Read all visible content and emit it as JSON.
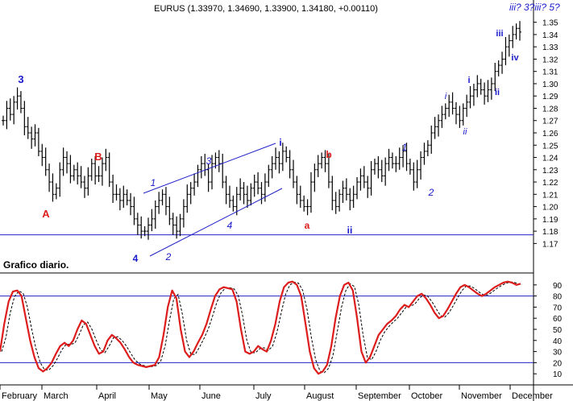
{
  "chart_data": [
    {
      "type": "ohlc",
      "title": "EURUS (1.33970, 1.34690, 1.33900, 1.34180, +0.00110)",
      "ylim": [
        1.165,
        1.355
      ],
      "yticks": [
        "1.35",
        "1.34",
        "1.33",
        "1.32",
        "1.31",
        "1.30",
        "1.29",
        "1.28",
        "1.27",
        "1.26",
        "1.25",
        "1.24",
        "1.23",
        "1.22",
        "1.21",
        "1.20",
        "1.19",
        "1.18",
        "1.17"
      ],
      "reference_line": 1.177,
      "series_close": [
        1.27,
        1.28,
        1.275,
        1.285,
        1.29,
        1.28,
        1.265,
        1.26,
        1.255,
        1.26,
        1.245,
        1.24,
        1.23,
        1.22,
        1.21,
        1.215,
        1.23,
        1.24,
        1.235,
        1.225,
        1.23,
        1.225,
        1.22,
        1.215,
        1.225,
        1.235,
        1.225,
        1.225,
        1.235,
        1.24,
        1.22,
        1.21,
        1.21,
        1.205,
        1.21,
        1.205,
        1.2,
        1.19,
        1.185,
        1.18,
        1.18,
        1.185,
        1.19,
        1.2,
        1.205,
        1.21,
        1.2,
        1.19,
        1.185,
        1.18,
        1.19,
        1.2,
        1.21,
        1.215,
        1.22,
        1.23,
        1.235,
        1.23,
        1.22,
        1.235,
        1.24,
        1.235,
        1.22,
        1.21,
        1.205,
        1.2,
        1.21,
        1.215,
        1.21,
        1.205,
        1.215,
        1.22,
        1.215,
        1.21,
        1.22,
        1.23,
        1.235,
        1.24,
        1.235,
        1.245,
        1.24,
        1.23,
        1.22,
        1.21,
        1.205,
        1.2,
        1.2,
        1.22,
        1.23,
        1.235,
        1.24,
        1.235,
        1.22,
        1.205,
        1.2,
        1.21,
        1.215,
        1.21,
        1.205,
        1.21,
        1.22,
        1.225,
        1.22,
        1.215,
        1.23,
        1.235,
        1.23,
        1.225,
        1.235,
        1.24,
        1.235,
        1.235,
        1.24,
        1.245,
        1.235,
        1.23,
        1.22,
        1.23,
        1.24,
        1.245,
        1.25,
        1.26,
        1.265,
        1.27,
        1.275,
        1.28,
        1.285,
        1.28,
        1.275,
        1.27,
        1.28,
        1.285,
        1.29,
        1.295,
        1.3,
        1.295,
        1.29,
        1.295,
        1.3,
        1.31,
        1.315,
        1.32,
        1.33,
        1.335,
        1.34,
        1.345,
        1.342
      ],
      "wave_labels": [
        {
          "text": "3",
          "color": "#1a1acc",
          "italic": false
        },
        {
          "text": "A",
          "color": "#dd1c1c",
          "italic": false
        },
        {
          "text": "B",
          "color": "#dd1c1c",
          "italic": false
        },
        {
          "text": "4",
          "color": "#1a1acc",
          "italic": false
        },
        {
          "text": "1",
          "color": "#1a1acc",
          "italic": true
        },
        {
          "text": "2",
          "color": "#1a1acc",
          "italic": true
        },
        {
          "text": "3",
          "color": "#1a1acc",
          "italic": true
        },
        {
          "text": "4",
          "color": "#1a1acc",
          "italic": true
        },
        {
          "text": "i",
          "color": "#1a1acc",
          "italic": false
        },
        {
          "text": "a",
          "color": "#dd1c1c",
          "italic": false
        },
        {
          "text": "b",
          "color": "#dd1c1c",
          "italic": false
        },
        {
          "text": "ii",
          "color": "#1a1acc",
          "italic": false
        },
        {
          "text": "1",
          "color": "#1a1acc",
          "italic": true
        },
        {
          "text": "2",
          "color": "#1a1acc",
          "italic": true
        },
        {
          "text": "i",
          "color": "#1a1acc",
          "italic": true
        },
        {
          "text": "ii",
          "color": "#1a1acc",
          "italic": true
        },
        {
          "text": "i",
          "color": "#1a1acc",
          "italic": false
        },
        {
          "text": "ii",
          "color": "#1a1acc",
          "italic": false
        },
        {
          "text": "iii",
          "color": "#1a1acc",
          "italic": false
        },
        {
          "text": "iv",
          "color": "#1a1acc",
          "italic": false
        },
        {
          "text": "iii? 3?iii? 5?",
          "color": "#1a1acc",
          "italic": true
        }
      ]
    },
    {
      "type": "line",
      "caption": "Grafico diario.",
      "ylim": [
        0,
        100
      ],
      "yticks": [
        "90",
        "80",
        "70",
        "60",
        "50",
        "40",
        "30",
        "20",
        "10"
      ],
      "levels": [
        80,
        20
      ],
      "series": [
        {
          "values": [
            30,
            55,
            75,
            84,
            85,
            80,
            60,
            40,
            25,
            15,
            12,
            15,
            20,
            28,
            35,
            38,
            35,
            40,
            50,
            58,
            55,
            45,
            35,
            28,
            30,
            40,
            45,
            42,
            38,
            32,
            25,
            20,
            18,
            17,
            16,
            17,
            18,
            25,
            45,
            70,
            85,
            78,
            50,
            30,
            25,
            30,
            38,
            45,
            55,
            68,
            80,
            86,
            88,
            87,
            86,
            75,
            50,
            30,
            28,
            30,
            35,
            32,
            30,
            40,
            55,
            75,
            88,
            92,
            93,
            90,
            80,
            55,
            30,
            15,
            10,
            12,
            18,
            35,
            60,
            80,
            90,
            92,
            85,
            60,
            30,
            20,
            25,
            35,
            45,
            50,
            55,
            58,
            62,
            68,
            72,
            70,
            75,
            80,
            82,
            78,
            72,
            65,
            60,
            62,
            68,
            75,
            82,
            88,
            90,
            88,
            85,
            82,
            80,
            82,
            85,
            88,
            90,
            92,
            93,
            92,
            90,
            91
          ]
        }
      ]
    }
  ],
  "x_axis": {
    "months": [
      "February",
      "March",
      "April",
      "May",
      "June",
      "July",
      "August",
      "September",
      "October",
      "November",
      "December"
    ]
  }
}
